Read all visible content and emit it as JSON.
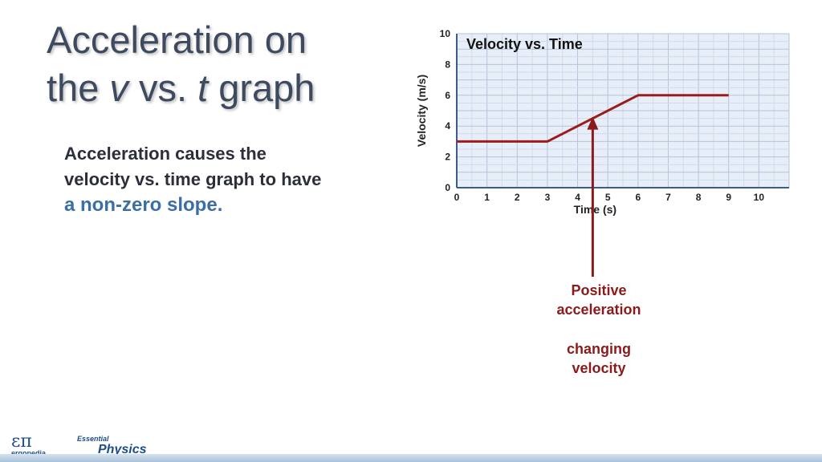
{
  "slide": {
    "title_part1": "Acceleration on",
    "title_part2a": "the ",
    "title_v": "v",
    "title_part2b": " vs. ",
    "title_t": "t",
    "title_part2c": " graph",
    "body_text": "Acceleration causes the velocity vs. time graph to have ",
    "body_highlight": "a non-zero slope."
  },
  "annotation": {
    "line1": "Positive",
    "line2": "acceleration",
    "line3": "changing",
    "line4": "velocity",
    "color": "#8b1a1a"
  },
  "footer": {
    "logo_symbol": "επ",
    "logo_word": "ergopedia",
    "brand_small": "Essential",
    "brand_big": "Physics"
  },
  "chart_data": {
    "type": "line",
    "title": "Velocity vs. Time",
    "xlabel": "Time (s)",
    "ylabel": "Velocity (m/s)",
    "xlim": [
      0,
      11
    ],
    "ylim": [
      0,
      10
    ],
    "xticks": [
      0,
      1,
      2,
      3,
      4,
      5,
      6,
      7,
      8,
      9,
      10
    ],
    "yticks": [
      0,
      2,
      4,
      6,
      8,
      10
    ],
    "grid": true,
    "series": [
      {
        "x": [
          0,
          3,
          6,
          9
        ],
        "y": [
          3,
          3,
          6,
          6
        ],
        "color": "#9b1c1c"
      }
    ],
    "arrow": {
      "x": 4.5,
      "y": 4.5,
      "color": "#8b1a1a"
    }
  }
}
